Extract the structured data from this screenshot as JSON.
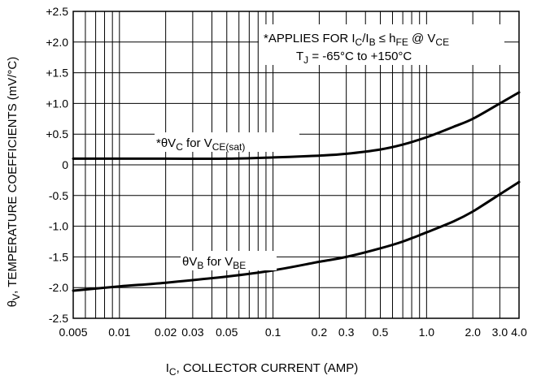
{
  "chart_data": {
    "type": "line",
    "x_scale": "log",
    "xlim": [
      0.005,
      4.0
    ],
    "ylim": [
      -2.5,
      2.5
    ],
    "grid": true,
    "x_ticks": [
      {
        "v": 0.005,
        "label": "0.005"
      },
      {
        "v": 0.01,
        "label": "0.01"
      },
      {
        "v": 0.02,
        "label": "0.02"
      },
      {
        "v": 0.03,
        "label": "0.03"
      },
      {
        "v": 0.05,
        "label": "0.05"
      },
      {
        "v": 0.1,
        "label": "0.1"
      },
      {
        "v": 0.2,
        "label": "0.2"
      },
      {
        "v": 0.3,
        "label": "0.3"
      },
      {
        "v": 0.5,
        "label": "0.5"
      },
      {
        "v": 1.0,
        "label": "1.0"
      },
      {
        "v": 2.0,
        "label": "2.0"
      },
      {
        "v": 3.0,
        "label": "3.0"
      },
      {
        "v": 4.0,
        "label": "4.0"
      }
    ],
    "x_grid": [
      0.005,
      0.006,
      0.007,
      0.008,
      0.009,
      0.01,
      0.02,
      0.03,
      0.04,
      0.05,
      0.06,
      0.07,
      0.08,
      0.09,
      0.1,
      0.2,
      0.3,
      0.4,
      0.5,
      0.6,
      0.7,
      0.8,
      0.9,
      1.0,
      2.0,
      3.0,
      4.0
    ],
    "y_ticks": [
      {
        "v": 2.5,
        "label": "+2.5"
      },
      {
        "v": 2.0,
        "label": "+2.0"
      },
      {
        "v": 1.5,
        "label": "+1.5"
      },
      {
        "v": 1.0,
        "label": "+1.0"
      },
      {
        "v": 0.5,
        "label": "+0.5"
      },
      {
        "v": 0.0,
        "label": "0"
      },
      {
        "v": -0.5,
        "label": "-0.5"
      },
      {
        "v": -1.0,
        "label": "-1.0"
      },
      {
        "v": -1.5,
        "label": "-1.5"
      },
      {
        "v": -2.0,
        "label": "-2.0"
      },
      {
        "v": -2.5,
        "label": "-2.5"
      }
    ],
    "xlabel": {
      "main": "I",
      "sub": "C",
      "rest": ", COLLECTOR CURRENT (AMP)"
    },
    "ylabel": {
      "main": "θ",
      "sub": "V",
      "rest": ", TEMPERATURE COEFFICIENTS (mV/°C)"
    },
    "note": {
      "line1": {
        "a": "*APPLIES FOR I",
        "b": "C",
        "c": "/I",
        "d": "B",
        "e": " ≤ h",
        "f": "FE",
        "g": " @ V",
        "h": "CE"
      },
      "line2": {
        "a": "T",
        "b": "J",
        "c": " = -65°C to +150°C"
      }
    },
    "series": [
      {
        "label": {
          "a": "*θV",
          "b": "C",
          "c": " for V",
          "d": "CE(sat)"
        },
        "x": [
          0.005,
          0.01,
          0.02,
          0.05,
          0.1,
          0.2,
          0.3,
          0.5,
          0.7,
          1.0,
          1.5,
          2.0,
          3.0,
          4.0
        ],
        "y": [
          0.1,
          0.1,
          0.1,
          0.1,
          0.12,
          0.15,
          0.18,
          0.25,
          0.33,
          0.45,
          0.62,
          0.75,
          1.0,
          1.18
        ]
      },
      {
        "label": {
          "a": "θV",
          "b": "B",
          "c": " for V",
          "d": "BE"
        },
        "x": [
          0.005,
          0.01,
          0.02,
          0.05,
          0.1,
          0.2,
          0.3,
          0.5,
          0.7,
          1.0,
          1.5,
          2.0,
          3.0,
          4.0
        ],
        "y": [
          -2.05,
          -1.98,
          -1.92,
          -1.82,
          -1.72,
          -1.58,
          -1.5,
          -1.36,
          -1.25,
          -1.1,
          -0.92,
          -0.76,
          -0.48,
          -0.28
        ]
      }
    ]
  }
}
